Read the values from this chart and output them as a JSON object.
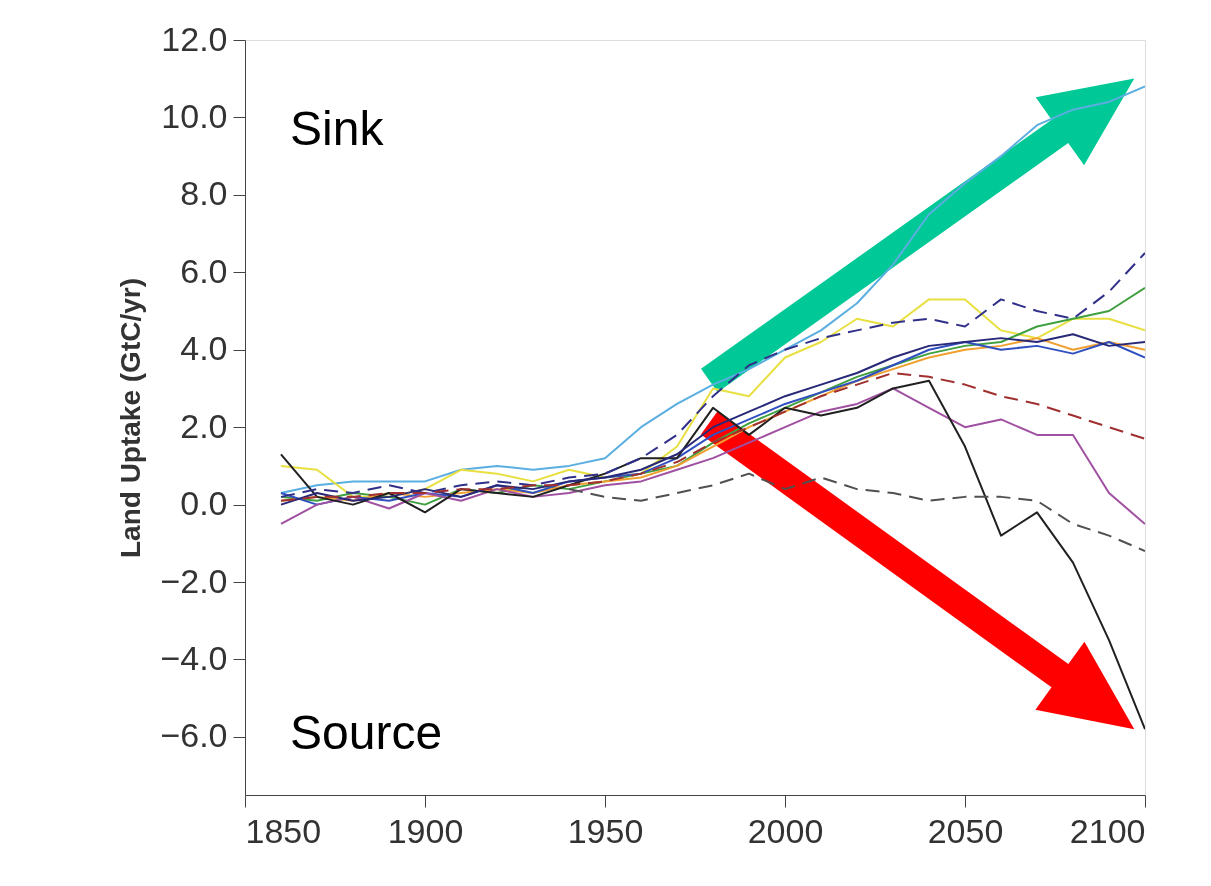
{
  "chart_data": {
    "type": "line",
    "ylabel": "Land Uptake (GtC/yr)",
    "xlim": [
      1850,
      2100
    ],
    "xticks": [
      1850,
      1900,
      1950,
      2000,
      2050,
      2100
    ],
    "ylim": [
      -7.5,
      12.0
    ],
    "yticks": [
      {
        "value": 12,
        "label": "12.0"
      },
      {
        "value": 10,
        "label": "10.0"
      },
      {
        "value": 8,
        "label": "8.0"
      },
      {
        "value": 6,
        "label": "6.0"
      },
      {
        "value": 4,
        "label": "4.0"
      },
      {
        "value": 2,
        "label": "2.0"
      },
      {
        "value": 0,
        "label": "0.0"
      },
      {
        "value": -2,
        "label": "−2.0"
      },
      {
        "value": -4,
        "label": "−4.0"
      },
      {
        "value": -6,
        "label": "−6.0"
      }
    ],
    "grid": false,
    "legend": false,
    "marker": "none",
    "annotations": [
      "Sink",
      "Source"
    ],
    "x": [
      1860,
      1870,
      1880,
      1890,
      1900,
      1910,
      1920,
      1930,
      1940,
      1950,
      1960,
      1970,
      1980,
      1990,
      2000,
      2010,
      2020,
      2030,
      2040,
      2050,
      2060,
      2070,
      2080,
      2090,
      2100
    ],
    "series": [
      {
        "color": "#5aaee0",
        "line_style": "solid",
        "values": [
          0.3,
          0.5,
          0.6,
          0.6,
          0.6,
          0.9,
          1.0,
          0.9,
          1.0,
          1.2,
          2.0,
          2.6,
          3.1,
          3.5,
          4.0,
          4.5,
          5.2,
          6.2,
          7.5,
          8.3,
          9.0,
          9.8,
          10.2,
          10.4,
          10.8
        ]
      },
      {
        "color": "#30308a",
        "line_style": "dashed",
        "values": [
          0.2,
          0.4,
          0.3,
          0.5,
          0.3,
          0.5,
          0.6,
          0.5,
          0.7,
          0.8,
          1.2,
          1.8,
          2.8,
          3.6,
          4.0,
          4.3,
          4.5,
          4.7,
          4.8,
          4.6,
          5.3,
          5.0,
          4.8,
          5.5,
          6.5
        ]
      },
      {
        "color": "#e8e040",
        "line_style": "solid",
        "values": [
          1.0,
          0.9,
          0.2,
          0.2,
          0.4,
          0.9,
          0.8,
          0.6,
          0.9,
          0.7,
          0.8,
          1.5,
          3.0,
          2.8,
          3.8,
          4.2,
          4.8,
          4.6,
          5.3,
          5.3,
          4.5,
          4.3,
          4.8,
          4.8,
          4.5
        ]
      },
      {
        "color": "#40a040",
        "line_style": "solid",
        "values": [
          0.2,
          0.1,
          0.3,
          0.2,
          0.0,
          0.4,
          0.3,
          0.5,
          0.4,
          0.6,
          0.8,
          1.0,
          1.6,
          2.1,
          2.5,
          2.9,
          3.3,
          3.6,
          3.9,
          4.1,
          4.2,
          4.6,
          4.8,
          5.0,
          5.6
        ]
      },
      {
        "color": "#f0a030",
        "line_style": "solid",
        "values": [
          0.1,
          0.2,
          0.1,
          0.3,
          0.2,
          0.3,
          0.4,
          0.3,
          0.5,
          0.6,
          0.7,
          1.0,
          1.5,
          2.0,
          2.4,
          2.8,
          3.2,
          3.5,
          3.8,
          4.0,
          4.1,
          4.3,
          4.0,
          4.2,
          4.0
        ]
      },
      {
        "color": "#3050c0",
        "line_style": "solid",
        "values": [
          0.3,
          0.0,
          0.2,
          0.1,
          0.3,
          0.2,
          0.5,
          0.3,
          0.6,
          0.7,
          0.8,
          1.2,
          1.8,
          2.2,
          2.6,
          2.9,
          3.2,
          3.6,
          4.0,
          4.2,
          4.0,
          4.1,
          3.9,
          4.2,
          3.8
        ]
      },
      {
        "color": "#a03030",
        "line_style": "dashed",
        "values": [
          0.1,
          0.2,
          0.2,
          0.3,
          0.3,
          0.4,
          0.4,
          0.5,
          0.5,
          0.6,
          0.8,
          1.1,
          1.6,
          2.0,
          2.4,
          2.8,
          3.1,
          3.4,
          3.3,
          3.1,
          2.8,
          2.6,
          2.3,
          2.0,
          1.7
        ]
      },
      {
        "color": "#a050a0",
        "line_style": "solid",
        "values": [
          -0.5,
          0.0,
          0.2,
          -0.1,
          0.3,
          0.1,
          0.4,
          0.2,
          0.3,
          0.5,
          0.6,
          0.9,
          1.2,
          1.6,
          2.0,
          2.4,
          2.6,
          3.0,
          2.5,
          2.0,
          2.2,
          1.8,
          1.8,
          0.3,
          -0.5
        ]
      },
      {
        "color": "#202020",
        "line_style": "solid",
        "values": [
          1.3,
          0.2,
          0.0,
          0.3,
          -0.2,
          0.4,
          0.3,
          0.2,
          0.5,
          0.8,
          1.2,
          1.2,
          2.5,
          1.8,
          2.5,
          2.3,
          2.5,
          3.0,
          3.2,
          1.5,
          -0.8,
          -0.2,
          -1.5,
          -3.5,
          -5.8
        ]
      },
      {
        "color": "#505050",
        "line_style": "dashed",
        "values": [
          null,
          null,
          null,
          null,
          null,
          null,
          null,
          null,
          0.4,
          0.2,
          0.1,
          0.3,
          0.5,
          0.8,
          0.4,
          0.7,
          0.4,
          0.3,
          0.1,
          0.2,
          0.2,
          0.1,
          -0.5,
          -0.8,
          -1.2
        ]
      },
      {
        "color": "#282878",
        "line_style": "solid",
        "values": [
          0.0,
          0.3,
          0.1,
          0.2,
          0.4,
          0.2,
          0.5,
          0.4,
          0.6,
          0.7,
          0.9,
          1.3,
          2.0,
          2.4,
          2.8,
          3.1,
          3.4,
          3.8,
          4.1,
          4.2,
          4.3,
          4.2,
          4.4,
          4.1,
          4.2
        ]
      }
    ]
  }
}
